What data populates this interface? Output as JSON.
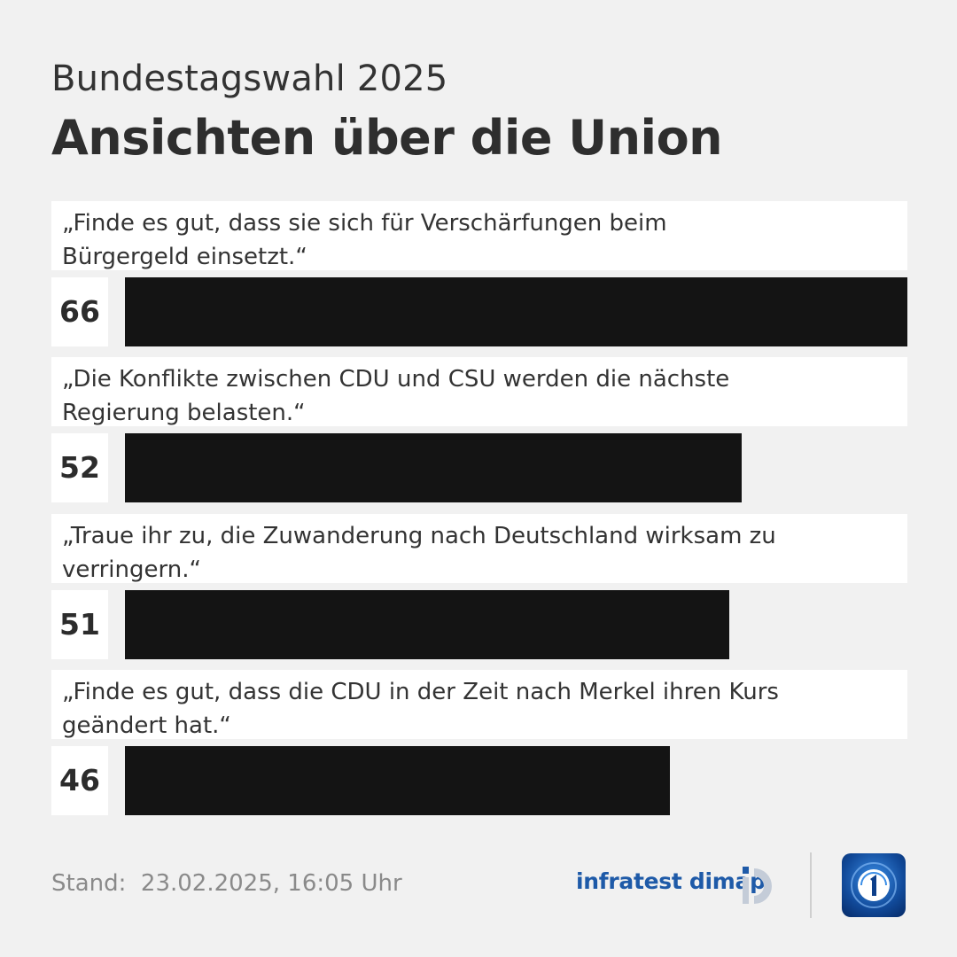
{
  "header": {
    "subtitle": "Bundestagswahl 2025",
    "title": "Ansichten über die Union"
  },
  "chart_data": {
    "type": "bar",
    "orientation": "horizontal",
    "title": "Ansichten über die Union",
    "subtitle": "Bundestagswahl 2025",
    "categories": [
      "„Finde es gut, dass sie sich für Verschärfungen beim Bürgergeld einsetzt.“",
      "„Die Konflikte zwischen CDU und CSU werden die nächste Regierung belasten.“",
      "„Traue ihr zu, die Zuwanderung nach Deutschland wirksam zu verringern.“",
      "„Finde es gut, dass die CDU in der Zeit nach Merkel ihren Kurs geändert hat.“"
    ],
    "values": [
      66,
      52,
      51,
      46
    ],
    "xlim": [
      0,
      66
    ],
    "bar_color": "#141414",
    "grid": false,
    "legend": "none"
  },
  "footer": {
    "stand": "Stand:  23.02.2025, 16:05 Uhr",
    "brand": "infratest dimap"
  },
  "icons": {
    "brand_logo": "infratest-dimap-logo-icon",
    "broadcaster_logo": "tagesschau-logo-icon"
  },
  "colors": {
    "background": "#f1f1f1",
    "bar": "#141414",
    "brand": "#1e5aa8"
  }
}
